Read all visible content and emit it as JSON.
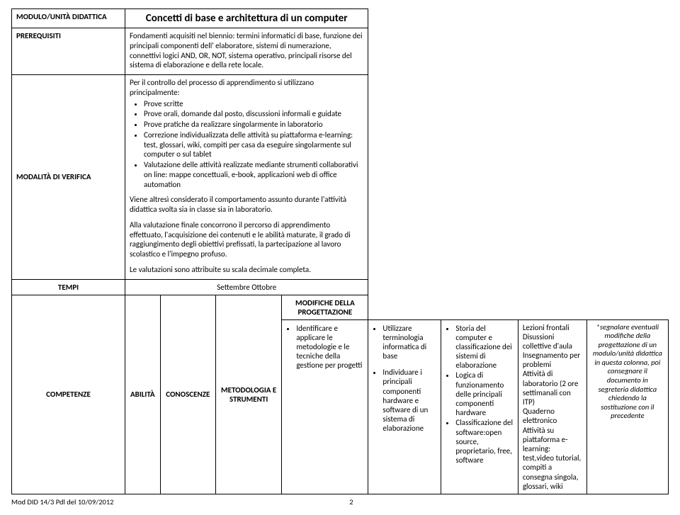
{
  "header": {
    "moduloLabel": "MODULO/UNITÀ DIDATTICA",
    "title": "Concetti di base e architettura di un computer",
    "prereqLabel": "PREREQUISITI",
    "prereqText": "Fondamenti acquisiti nel biennio: termini informatici di base, funzione dei principali componenti dell' elaboratore, sistemi di numerazione, connettivi logici AND, OR, NOT, sistema operativo, principali risorse del sistema di elaborazione e della rete locale.",
    "modalitaLabel": "MODALITÀ DI VERIFICA",
    "modalitaIntro": "Per il controllo del processo di apprendimento si utilizzano principalmente:",
    "modalitaBullets": [
      "Prove scritte",
      "Prove orali, domande dal posto, discussioni informali e guidate",
      "Prove pratiche da realizzare singolarmente in laboratorio",
      "Correzione individualizzata delle attività su piattaforma e-learning: test, glossari, wiki, compiti per casa da eseguire singolarmente sul computer o sul tablet",
      "Valutazione delle attività realizzate mediante strumenti collaborativi on line: mappe concettuali, e-book, applicazioni web di office automation"
    ],
    "modalitaP1": "Viene altresì considerato il comportamento assunto durante l'attività didattica svolta sia in classe sia in laboratorio.",
    "modalitaP2": "Alla valutazione finale concorrono il percorso di apprendimento effettuato, l'acquisizione dei contenuti e le abilità maturate, il grado di raggiungimento degli obiettivi prefissati, la partecipazione al lavoro scolastico e l'impegno profuso.",
    "modalitaP3": "Le valutazioni sono attribuite su scala decimale completa."
  },
  "tempi": {
    "label": "TEMPI",
    "value": "Settembre   Ottobre"
  },
  "cols": {
    "c1": "COMPETENZE",
    "c2": "ABILITÀ",
    "c3": "CONOSCENZE",
    "c4": "METODOLOGIA E STRUMENTI",
    "c5a": "MODIFICHE DELLA",
    "c5b": "PROGETTAZIONE"
  },
  "row": {
    "competenze": [
      "Identificare e applicare le metodologie e le tecniche della gestione per progetti"
    ],
    "abilita": [
      "Utilizzare terminologia informatica di base",
      "Individuare i principali componenti hardware e software di un sistema di elaborazione"
    ],
    "conoscenze": [
      "Storia del computer e classificazione dei sistemi di elaborazione",
      "Logica di funzionamento delle principali componenti hardware",
      "Classificazione del software:open source, proprietario, free, software"
    ],
    "metodologia": [
      "Lezioni frontali",
      "Disussioni collettive d'aula",
      "Insegnamento per problemi",
      "Attività di laboratorio (2 ore settimanali con ITP)",
      "Quaderno elettronico",
      "Attività su piattaforma e-learning: test,video tutorial, compiti a consegna singola, glossari, wiki"
    ],
    "modifiche": "*segnalare eventuali modifiche della progettazione di un modulo/unità didattica in questa colonna, poi consegnare il documento in segreteria didattica chiedendo la sostituzione con il precedente"
  },
  "footer": {
    "left": "Mod DID 14/3 Pdl del 10/09/2012",
    "page": "2"
  }
}
